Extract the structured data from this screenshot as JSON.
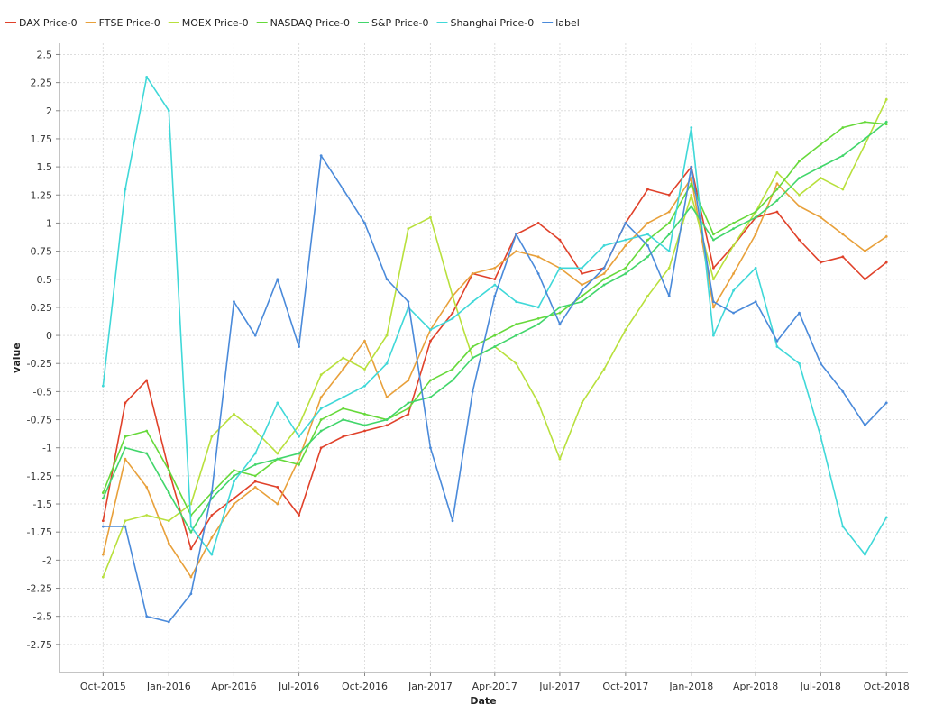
{
  "chart_data": {
    "type": "line",
    "xlabel": "Date",
    "ylabel": "value",
    "xlim": [
      "2015-08-01",
      "2018-10-31"
    ],
    "ylim": [
      -3.0,
      2.6
    ],
    "grid": true,
    "legend_position": "top-left",
    "x_ticks": [
      "Oct-2015",
      "Jan-2016",
      "Apr-2016",
      "Jul-2016",
      "Oct-2016",
      "Jan-2017",
      "Apr-2017",
      "Jul-2017",
      "Oct-2017",
      "Jan-2018",
      "Apr-2018",
      "Jul-2018",
      "Oct-2018"
    ],
    "x_tick_dates": [
      "2015-10-01",
      "2016-01-01",
      "2016-04-01",
      "2016-07-01",
      "2016-10-01",
      "2017-01-01",
      "2017-04-01",
      "2017-07-01",
      "2017-10-01",
      "2018-01-01",
      "2018-04-01",
      "2018-07-01",
      "2018-10-01"
    ],
    "y_ticks": [
      "2.5",
      "2.25",
      "2",
      "1.75",
      "1.5",
      "1.25",
      "1",
      "0.75",
      "0.5",
      "0.25",
      "0",
      "-0.25",
      "-0.5",
      "-0.75",
      "-1",
      "-1.25",
      "-1.5",
      "-1.75",
      "-2",
      "-2.25",
      "-2.5",
      "-2.75"
    ],
    "y_tick_values": [
      2.5,
      2.25,
      2,
      1.75,
      1.5,
      1.25,
      1,
      0.75,
      0.5,
      0.25,
      0,
      -0.25,
      -0.5,
      -0.75,
      -1,
      -1.25,
      -1.5,
      -1.75,
      -2,
      -2.25,
      -2.5,
      -2.75
    ],
    "x": [
      "2015-10-01",
      "2015-11-01",
      "2015-12-01",
      "2016-01-01",
      "2016-02-01",
      "2016-03-01",
      "2016-04-01",
      "2016-05-01",
      "2016-06-01",
      "2016-07-01",
      "2016-08-01",
      "2016-09-01",
      "2016-10-01",
      "2016-11-01",
      "2016-12-01",
      "2017-01-01",
      "2017-02-01",
      "2017-03-01",
      "2017-04-01",
      "2017-05-01",
      "2017-06-01",
      "2017-07-01",
      "2017-08-01",
      "2017-09-01",
      "2017-10-01",
      "2017-11-01",
      "2017-12-01",
      "2018-01-01",
      "2018-02-01",
      "2018-03-01",
      "2018-04-01",
      "2018-05-01",
      "2018-06-01",
      "2018-07-01",
      "2018-08-01",
      "2018-09-01",
      "2018-10-01"
    ],
    "series": [
      {
        "name": "DAX Price-0",
        "color": "#e0412a",
        "values": [
          -1.65,
          -0.6,
          -0.4,
          -1.2,
          -1.9,
          -1.6,
          -1.45,
          -1.3,
          -1.35,
          -1.6,
          -1.0,
          -0.9,
          -0.85,
          -0.8,
          -0.7,
          -0.05,
          0.2,
          0.55,
          0.5,
          0.9,
          1.0,
          0.85,
          0.55,
          0.6,
          1.0,
          1.3,
          1.25,
          1.5,
          0.6,
          0.8,
          1.05,
          1.1,
          0.85,
          0.65,
          0.7,
          0.5,
          0.65
        ]
      },
      {
        "name": "FTSE Price-0",
        "color": "#e8a03a",
        "values": [
          -1.95,
          -1.1,
          -1.35,
          -1.85,
          -2.15,
          -1.8,
          -1.5,
          -1.35,
          -1.5,
          -1.1,
          -0.55,
          -0.3,
          -0.05,
          -0.55,
          -0.4,
          0.05,
          0.35,
          0.55,
          0.6,
          0.75,
          0.7,
          0.6,
          0.45,
          0.55,
          0.8,
          1.0,
          1.1,
          1.4,
          0.25,
          0.55,
          0.9,
          1.35,
          1.15,
          1.05,
          0.9,
          0.75,
          0.88
        ]
      },
      {
        "name": "MOEX Price-0",
        "color": "#b8e03c",
        "values": [
          -2.15,
          -1.65,
          -1.6,
          -1.65,
          -1.5,
          -0.9,
          -0.7,
          -0.85,
          -1.05,
          -0.8,
          -0.35,
          -0.2,
          -0.3,
          0.0,
          0.95,
          1.05,
          0.35,
          -0.2,
          -0.1,
          -0.25,
          -0.6,
          -1.1,
          -0.6,
          -0.3,
          0.05,
          0.35,
          0.6,
          1.25,
          0.5,
          0.8,
          1.1,
          1.45,
          1.25,
          1.4,
          1.3,
          1.7,
          2.1
        ]
      },
      {
        "name": "NASDAQ Price-0",
        "color": "#66d93a",
        "values": [
          -1.4,
          -0.9,
          -0.85,
          -1.2,
          -1.6,
          -1.4,
          -1.2,
          -1.25,
          -1.1,
          -1.15,
          -0.75,
          -0.65,
          -0.7,
          -0.75,
          -0.65,
          -0.4,
          -0.3,
          -0.1,
          0.0,
          0.1,
          0.15,
          0.2,
          0.35,
          0.5,
          0.6,
          0.85,
          1.0,
          1.35,
          0.9,
          1.0,
          1.1,
          1.3,
          1.55,
          1.7,
          1.85,
          1.9,
          1.88
        ]
      },
      {
        "name": "S&P Price-0",
        "color": "#42d66b",
        "values": [
          -1.45,
          -1.0,
          -1.05,
          -1.4,
          -1.75,
          -1.45,
          -1.25,
          -1.15,
          -1.1,
          -1.05,
          -0.85,
          -0.75,
          -0.8,
          -0.75,
          -0.6,
          -0.55,
          -0.4,
          -0.2,
          -0.1,
          0.0,
          0.1,
          0.25,
          0.3,
          0.45,
          0.55,
          0.7,
          0.9,
          1.15,
          0.85,
          0.95,
          1.05,
          1.2,
          1.4,
          1.5,
          1.6,
          1.75,
          1.9
        ]
      },
      {
        "name": "Shanghai Price-0",
        "color": "#3fd8d8",
        "values": [
          -0.45,
          1.3,
          2.3,
          2.0,
          -1.7,
          -1.95,
          -1.3,
          -1.05,
          -0.6,
          -0.9,
          -0.65,
          -0.55,
          -0.45,
          -0.25,
          0.25,
          0.05,
          0.15,
          0.3,
          0.45,
          0.3,
          0.25,
          0.6,
          0.6,
          0.8,
          0.85,
          0.9,
          0.75,
          1.85,
          0.0,
          0.4,
          0.6,
          -0.1,
          -0.25,
          -0.9,
          -1.7,
          -1.95,
          -1.62
        ]
      },
      {
        "name": "label",
        "color": "#4a8ada",
        "values": [
          -1.7,
          -1.7,
          -2.5,
          -2.55,
          -2.3,
          -1.4,
          0.3,
          0.0,
          0.5,
          -0.1,
          1.6,
          1.3,
          1.0,
          0.5,
          0.3,
          -1.0,
          -1.65,
          -0.5,
          0.35,
          0.9,
          0.55,
          0.1,
          0.4,
          0.6,
          1.0,
          0.8,
          0.35,
          1.5,
          0.3,
          0.2,
          0.3,
          -0.05,
          0.2,
          -0.25,
          -0.5,
          -0.8,
          -0.6
        ]
      }
    ]
  }
}
